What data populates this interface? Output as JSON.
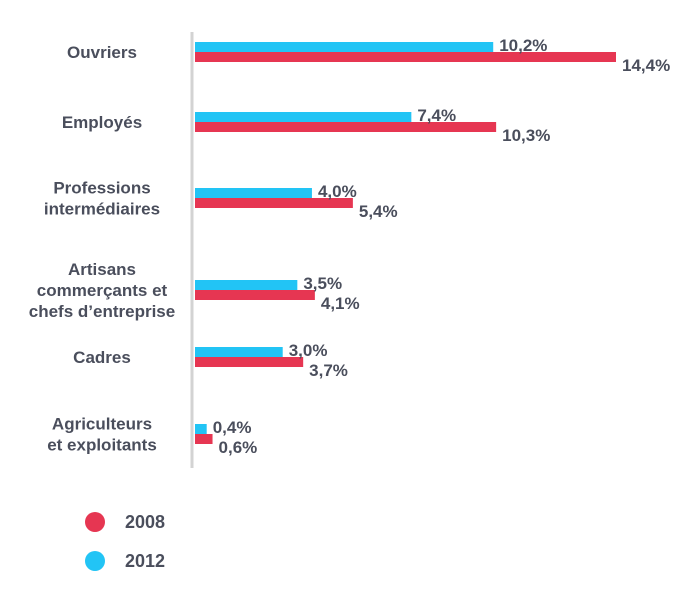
{
  "chart_data": {
    "type": "bar",
    "orientation": "horizontal",
    "categories": [
      [
        "Ouvriers"
      ],
      [
        "Employés"
      ],
      [
        "Professions",
        "intermédiaires"
      ],
      [
        "Artisans",
        "commerçants et",
        "chefs d’entreprise"
      ],
      [
        "Cadres"
      ],
      [
        "Agriculteurs",
        "et exploitants"
      ]
    ],
    "series": [
      {
        "name": "2012",
        "color": "#22c4f5",
        "values": [
          10.2,
          7.4,
          4.0,
          3.5,
          3.0,
          0.4
        ],
        "labels": [
          "10,2%",
          "7,4%",
          "4,0%",
          "3,5%",
          "3,0%",
          "0,4%"
        ]
      },
      {
        "name": "2008",
        "color": "#e63652",
        "values": [
          14.4,
          10.3,
          5.4,
          4.1,
          3.7,
          0.6
        ],
        "labels": [
          "14,4%",
          "10,3%",
          "5,4%",
          "4,1%",
          "3,7%",
          "0,6%"
        ]
      }
    ],
    "xlim": [
      0,
      14.4
    ],
    "grid": false,
    "legend": {
      "position": "bottom-left",
      "entries": [
        {
          "label": "2008",
          "color": "#e63652"
        },
        {
          "label": "2012",
          "color": "#22c4f5"
        }
      ]
    }
  },
  "colors": {
    "axis": "#d3d3d3",
    "text": "#4a4e5c"
  }
}
